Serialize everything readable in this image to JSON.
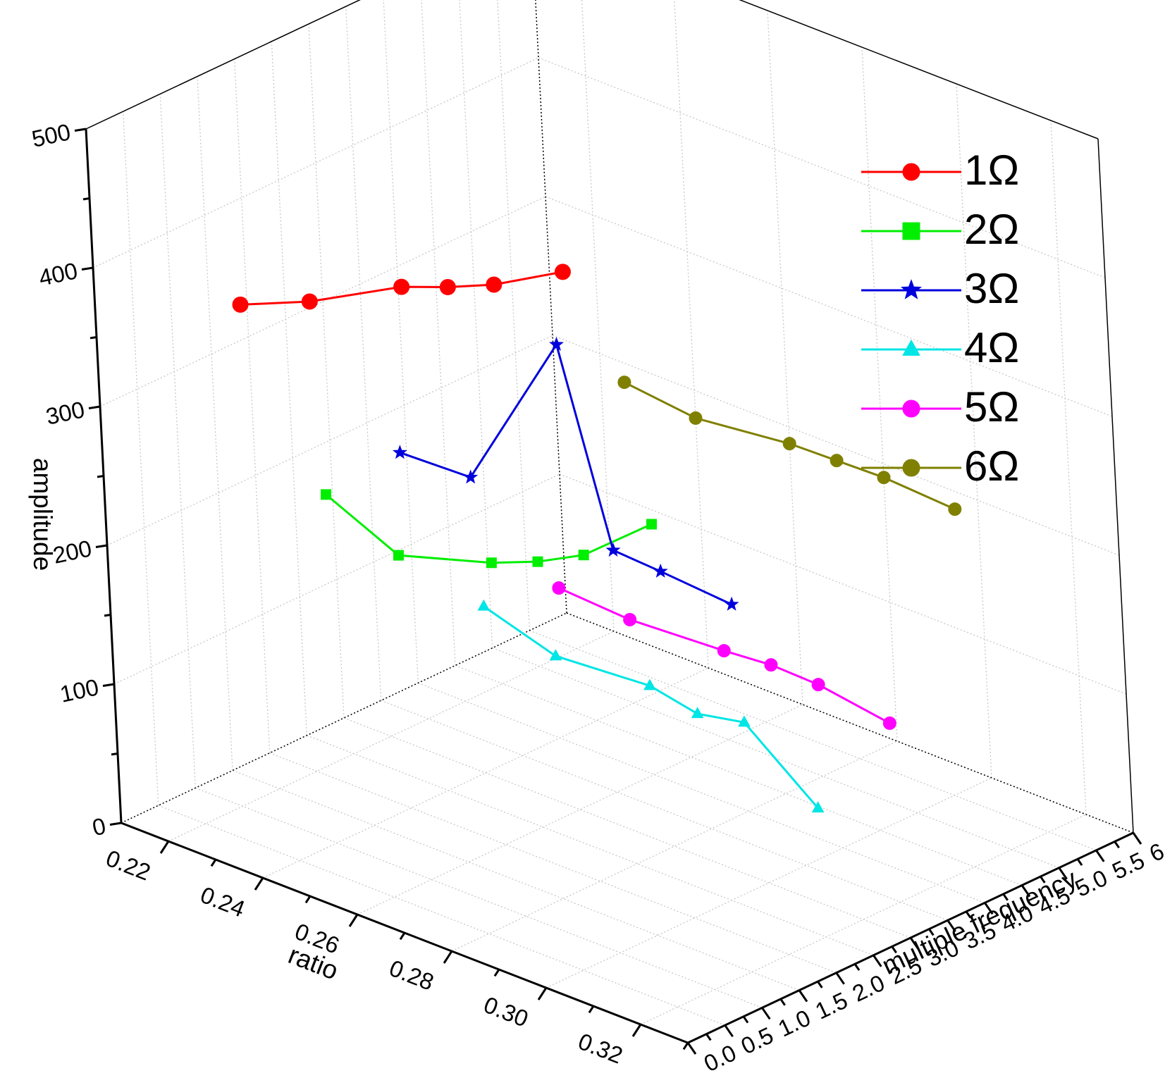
{
  "chart_data": {
    "type": "line3d",
    "xlabel": "ratio",
    "ylabel": "multiple frequency",
    "zlabel": "amplitude",
    "xlim": [
      0.21,
      0.33
    ],
    "ylim": [
      0.0,
      6.0
    ],
    "zlim": [
      0,
      500
    ],
    "x_ticks": [
      "0.22",
      "0.24",
      "0.26",
      "0.28",
      "0.30",
      "0.32"
    ],
    "y_ticks": [
      "0.0",
      "0.5",
      "1.0",
      "1.5",
      "2.0",
      "2.5",
      "3.0",
      "3.5",
      "4.0",
      "4.5",
      "5.0",
      "5.5",
      "6.0"
    ],
    "z_ticks": [
      "0",
      "100",
      "200",
      "300",
      "400",
      "500"
    ],
    "grid": true,
    "legend_position": "top-right",
    "series": [
      {
        "name": "1Ω",
        "color": "#ff0000",
        "marker": "circle",
        "y": 1,
        "x": [
          0.225,
          0.24,
          0.26,
          0.27,
          0.28,
          0.295
        ],
        "z": [
          368,
          390,
          427,
          440,
          455,
          484
        ]
      },
      {
        "name": "2Ω",
        "color": "#00ee00",
        "marker": "square",
        "y": 2,
        "x": [
          0.225,
          0.24,
          0.26,
          0.27,
          0.28,
          0.295
        ],
        "z": [
          206,
          182,
          203,
          217,
          235,
          277
        ]
      },
      {
        "name": "3Ω",
        "color": "#0000dd",
        "marker": "star",
        "y": 3,
        "x": [
          0.225,
          0.24,
          0.26,
          0.27,
          0.28,
          0.295
        ],
        "z": [
          211,
          213,
          335,
          200,
          198,
          194
        ]
      },
      {
        "name": "4Ω",
        "color": "#00e5e5",
        "marker": "triangle",
        "y": 4,
        "x": [
          0.225,
          0.24,
          0.26,
          0.27,
          0.28,
          0.295
        ],
        "z": [
          75,
          59,
          64,
          57,
          64,
          22
        ]
      },
      {
        "name": "5Ω",
        "color": "#ff00ff",
        "marker": "circle",
        "y": 5,
        "x": [
          0.225,
          0.24,
          0.26,
          0.27,
          0.28,
          0.295
        ],
        "z": [
          63,
          60,
          64,
          67,
          66,
          58
        ]
      },
      {
        "name": "6Ω",
        "color": "#808000",
        "marker": "circle",
        "y": 6,
        "x": [
          0.225,
          0.24,
          0.26,
          0.27,
          0.28,
          0.295
        ],
        "z": [
          186,
          180,
          188,
          189,
          190,
          187
        ]
      }
    ]
  }
}
